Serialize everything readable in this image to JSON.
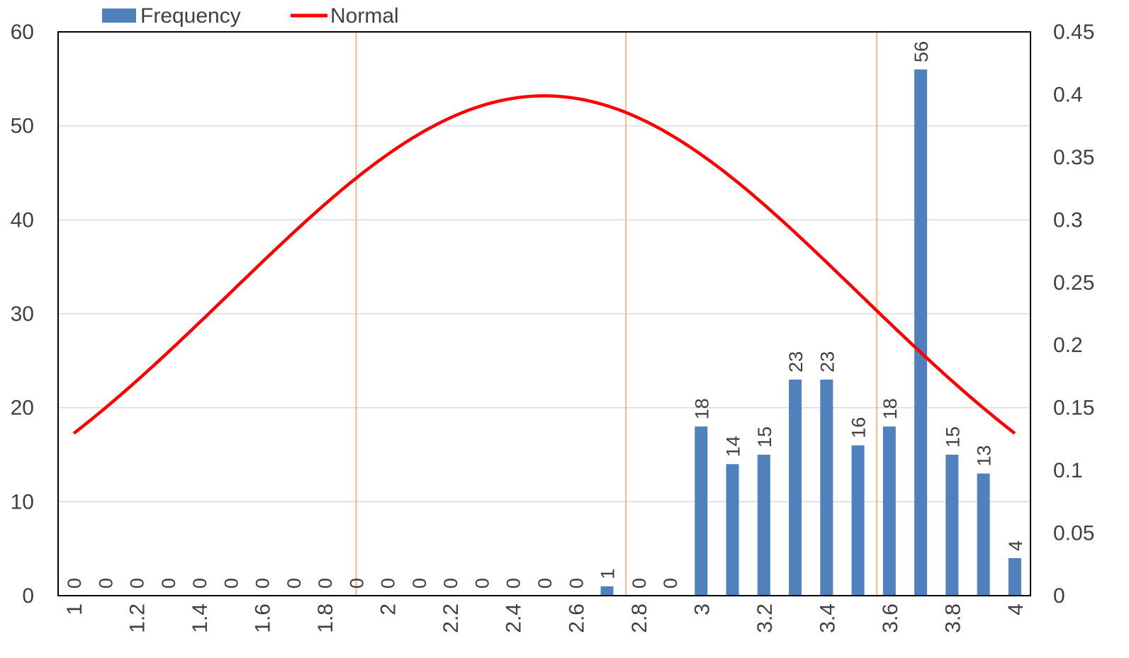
{
  "chart_data": {
    "type": "bar",
    "legend": {
      "position": "top-left",
      "entries": [
        "Frequency",
        "Normal"
      ]
    },
    "categories": [
      "1",
      "1.1",
      "1.2",
      "1.3",
      "1.4",
      "1.5",
      "1.6",
      "1.7",
      "1.8",
      "1.9",
      "2",
      "2.1",
      "2.2",
      "2.3",
      "2.4",
      "2.5",
      "2.6",
      "2.7",
      "2.8",
      "2.9",
      "3",
      "3.1",
      "3.2",
      "3.3",
      "3.4",
      "3.5",
      "3.6",
      "3.7",
      "3.8",
      "3.9",
      "4"
    ],
    "x_tick_labels": [
      "1",
      "1.2",
      "1.4",
      "1.6",
      "1.8",
      "2",
      "2.2",
      "2.4",
      "2.6",
      "2.8",
      "3",
      "3.2",
      "3.4",
      "3.6",
      "3.8",
      "4"
    ],
    "series": [
      {
        "name": "Frequency",
        "type": "bar",
        "axis": "left",
        "color": "#4F81BD",
        "values": [
          0,
          0,
          0,
          0,
          0,
          0,
          0,
          0,
          0,
          0,
          0,
          0,
          0,
          0,
          0,
          0,
          0,
          1,
          0,
          0,
          18,
          14,
          15,
          23,
          23,
          16,
          18,
          56,
          15,
          13,
          4
        ]
      },
      {
        "name": "Normal",
        "type": "line",
        "axis": "right",
        "color": "#FF0000",
        "mean": 2.5,
        "sd": 1.0,
        "x_range": [
          1,
          4
        ]
      }
    ],
    "y_left": {
      "min": 0,
      "max": 60,
      "ticks": [
        0,
        10,
        20,
        30,
        40,
        50,
        60
      ]
    },
    "y_right": {
      "min": 0,
      "max": 0.45,
      "ticks": [
        "0",
        "0.05",
        "0.1",
        "0.15",
        "0.2",
        "0.25",
        "0.3",
        "0.35",
        "0.4",
        "0.45"
      ]
    },
    "vertical_lines": {
      "color": "#F4A460",
      "x": [
        1.9,
        2.76,
        3.56
      ]
    },
    "grid": true,
    "title": "",
    "xlabel": "",
    "ylabel": ""
  }
}
